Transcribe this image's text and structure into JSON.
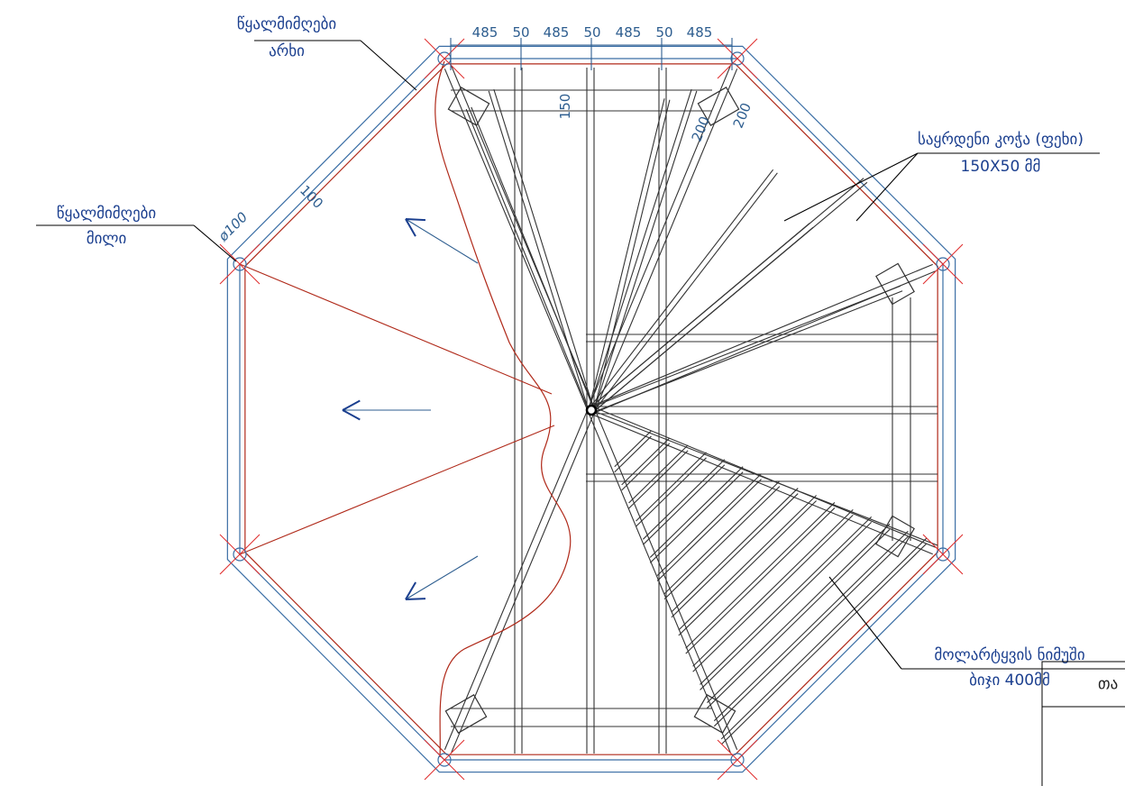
{
  "labels": {
    "gutter": {
      "line1": "წყალმიმღები",
      "line2": "არხი"
    },
    "pipe": {
      "line1": "წყალმიმღები",
      "line2": "მილი"
    },
    "rafter": {
      "line1": "საყრდენი კოჭა (ფეხი)",
      "line2": "150X50 მმ"
    },
    "lathing": {
      "line1": "მოლარტყვის ნიმუში",
      "line2": "ბიჯი 400მმ"
    }
  },
  "dimensions": {
    "top": [
      "485",
      "50",
      "485",
      "50",
      "485",
      "50",
      "485"
    ],
    "purlin_depth": "150",
    "rafter_width": [
      "200",
      "200"
    ],
    "gutter_width": "100",
    "pipe_diameter": "ø100"
  },
  "title_block": {
    "text": "თა"
  }
}
